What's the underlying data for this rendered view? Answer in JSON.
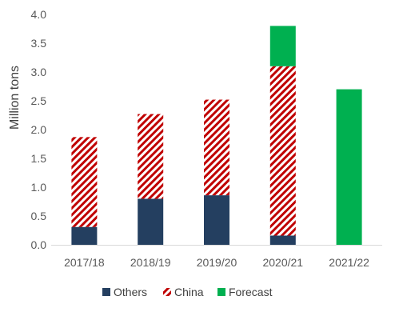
{
  "chart_data": {
    "type": "bar",
    "stacked": true,
    "title": "",
    "xlabel": "",
    "ylabel": "Million tons",
    "ylim": [
      0,
      4.0
    ],
    "ytick_step": 0.5,
    "yticks": [
      "0.0",
      "0.5",
      "1.0",
      "1.5",
      "2.0",
      "2.5",
      "3.0",
      "3.5",
      "4.0"
    ],
    "categories": [
      "2017/18",
      "2018/19",
      "2019/20",
      "2020/21",
      "2021/22"
    ],
    "grid": false,
    "legend_position": "bottom",
    "series": [
      {
        "name": "Others",
        "color": "#243f60",
        "pattern": "solid",
        "values": [
          0.31,
          0.8,
          0.86,
          0.16,
          0
        ]
      },
      {
        "name": "China",
        "color": "#c00000",
        "pattern": "diagonal-hatch",
        "values": [
          1.56,
          1.47,
          1.66,
          2.94,
          0
        ]
      },
      {
        "name": "Forecast",
        "color": "#00b050",
        "pattern": "solid",
        "values": [
          0,
          0,
          0,
          0.7,
          2.7
        ]
      }
    ]
  }
}
